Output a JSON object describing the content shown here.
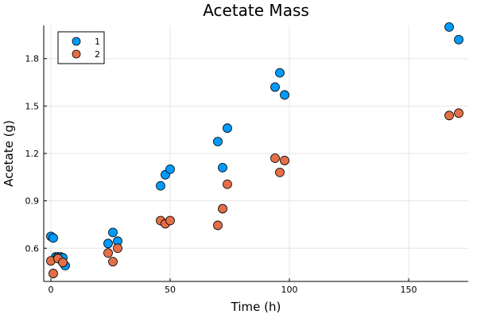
{
  "chart_data": {
    "type": "scatter",
    "title": "Acetate Mass",
    "xlabel": "Time (h)",
    "ylabel": "Acetate (g)",
    "xlim": [
      -3,
      175
    ],
    "ylim": [
      0.39,
      2.01
    ],
    "xticks": [
      0,
      50,
      100,
      150
    ],
    "xtick_labels": [
      "0",
      "50",
      "100",
      "150"
    ],
    "yticks": [
      0.6,
      0.9,
      1.2,
      1.5,
      1.8
    ],
    "ytick_labels": [
      "0.6",
      "0.9",
      "1.2",
      "1.5",
      "1.8"
    ],
    "grid": true,
    "legend_position": "top-left",
    "series": [
      {
        "name": "1",
        "color": "#009AFA",
        "points": [
          [
            0,
            0.675
          ],
          [
            1,
            0.665
          ],
          [
            2,
            0.545
          ],
          [
            3,
            0.545
          ],
          [
            4,
            0.545
          ],
          [
            5,
            0.54
          ],
          [
            6,
            0.49
          ],
          [
            24,
            0.63
          ],
          [
            26,
            0.7
          ],
          [
            28,
            0.645
          ],
          [
            46,
            0.995
          ],
          [
            48,
            1.065
          ],
          [
            50,
            1.1
          ],
          [
            70,
            1.275
          ],
          [
            72,
            1.11
          ],
          [
            74,
            1.36
          ],
          [
            94,
            1.62
          ],
          [
            96,
            1.71
          ],
          [
            98,
            1.57
          ],
          [
            167,
            2.0
          ],
          [
            171,
            1.92
          ]
        ]
      },
      {
        "name": "2",
        "color": "#E36F47",
        "points": [
          [
            0,
            0.52
          ],
          [
            1,
            0.44
          ],
          [
            3,
            0.535
          ],
          [
            5,
            0.51
          ],
          [
            24,
            0.57
          ],
          [
            26,
            0.515
          ],
          [
            28,
            0.6
          ],
          [
            46,
            0.775
          ],
          [
            48,
            0.755
          ],
          [
            50,
            0.775
          ],
          [
            70,
            0.745
          ],
          [
            72,
            0.85
          ],
          [
            74,
            1.005
          ],
          [
            94,
            1.17
          ],
          [
            96,
            1.08
          ],
          [
            98,
            1.155
          ],
          [
            167,
            1.44
          ],
          [
            171,
            1.455
          ]
        ]
      }
    ]
  }
}
